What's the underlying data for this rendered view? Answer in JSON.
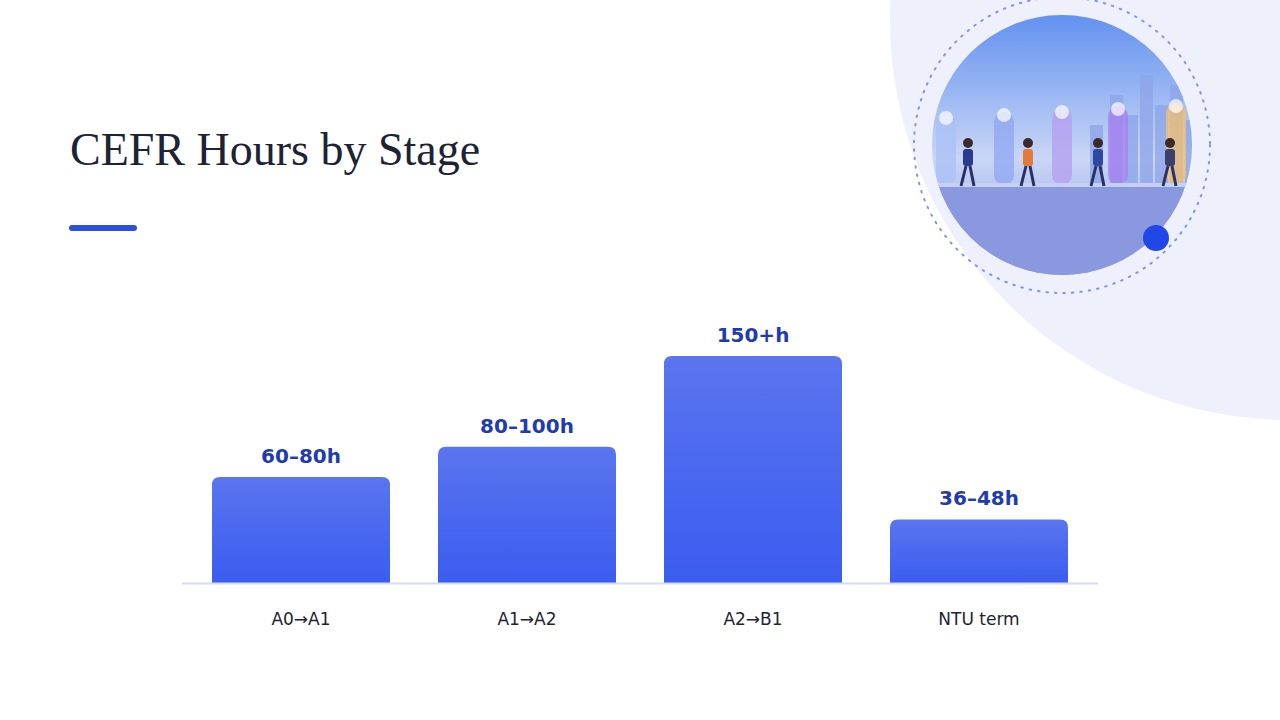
{
  "chart_data": {
    "type": "bar",
    "title": "CEFR Hours by Stage",
    "categories": [
      "A0→A1",
      "A1→A2",
      "A2→B1",
      "NTU term"
    ],
    "values": [
      70,
      90,
      150,
      42
    ],
    "value_labels": [
      "60–80h",
      "80–100h",
      "150+h",
      "36–48h"
    ],
    "color": "#3a5cf0",
    "ylim": [
      0,
      150
    ],
    "data_labels": true,
    "tick_labels": "x",
    "grid": false
  }
}
